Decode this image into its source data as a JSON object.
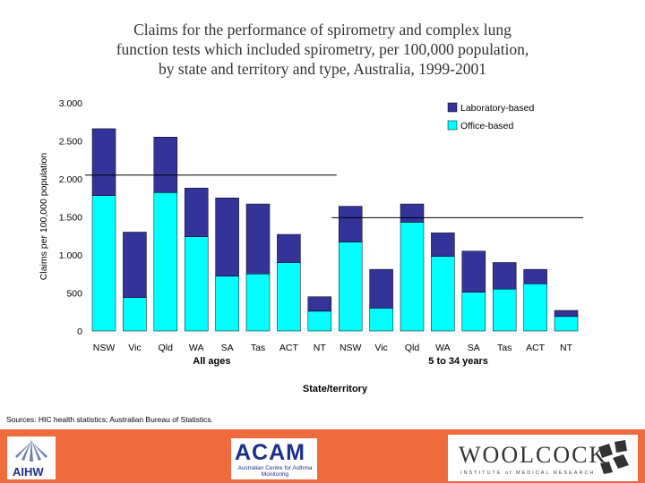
{
  "chart_data": {
    "type": "bar",
    "stacked": true,
    "title_lines": [
      "Claims for the performance of spirometry and complex lung",
      "function tests which included spirometry, per 100,000 population,",
      "by state and territory and type, Australia, 1999-2001"
    ],
    "ylabel": "Claims per 100,000 population",
    "xlabel": "State/territory",
    "ylim": [
      0,
      3000
    ],
    "yticks": [
      0,
      500,
      1000,
      1500,
      2000,
      2500,
      3000
    ],
    "ytick_labels": [
      "0",
      "500",
      "1.000",
      "1.500",
      "2.000",
      "2.500",
      "3.000"
    ],
    "groups": [
      {
        "name": "All ages",
        "categories": [
          "NSW",
          "Vic",
          "Qld",
          "WA",
          "SA",
          "Tas",
          "ACT",
          "NT"
        ],
        "reference": 2050
      },
      {
        "name": "5 to 34 years",
        "categories": [
          "NSW",
          "Vic",
          "Qld",
          "WA",
          "SA",
          "Tas",
          "ACT",
          "NT"
        ],
        "reference": 1490
      }
    ],
    "series": [
      {
        "name": "Office-based",
        "color": "#00ffff",
        "values": [
          1780,
          440,
          1820,
          1240,
          720,
          750,
          900,
          260,
          1170,
          300,
          1430,
          980,
          510,
          550,
          620,
          190
        ]
      },
      {
        "name": "Laboratory-based",
        "color": "#333399",
        "values": [
          880,
          860,
          730,
          640,
          1030,
          920,
          370,
          190,
          470,
          510,
          240,
          310,
          540,
          350,
          190,
          80
        ]
      }
    ],
    "legend": "top-right",
    "grid": false
  },
  "sources": "Sources: HIC health statistics; Australian Bureau of Statistics.",
  "footer": {
    "aihw": "AIHW",
    "acam_big": "ACAM",
    "acam_small": "Australian Centre for Asthma Monitoring",
    "woolcock_big": "WOOLCOCK",
    "woolcock_small": "INSTITUTE of MEDICAL RESEARCH"
  }
}
